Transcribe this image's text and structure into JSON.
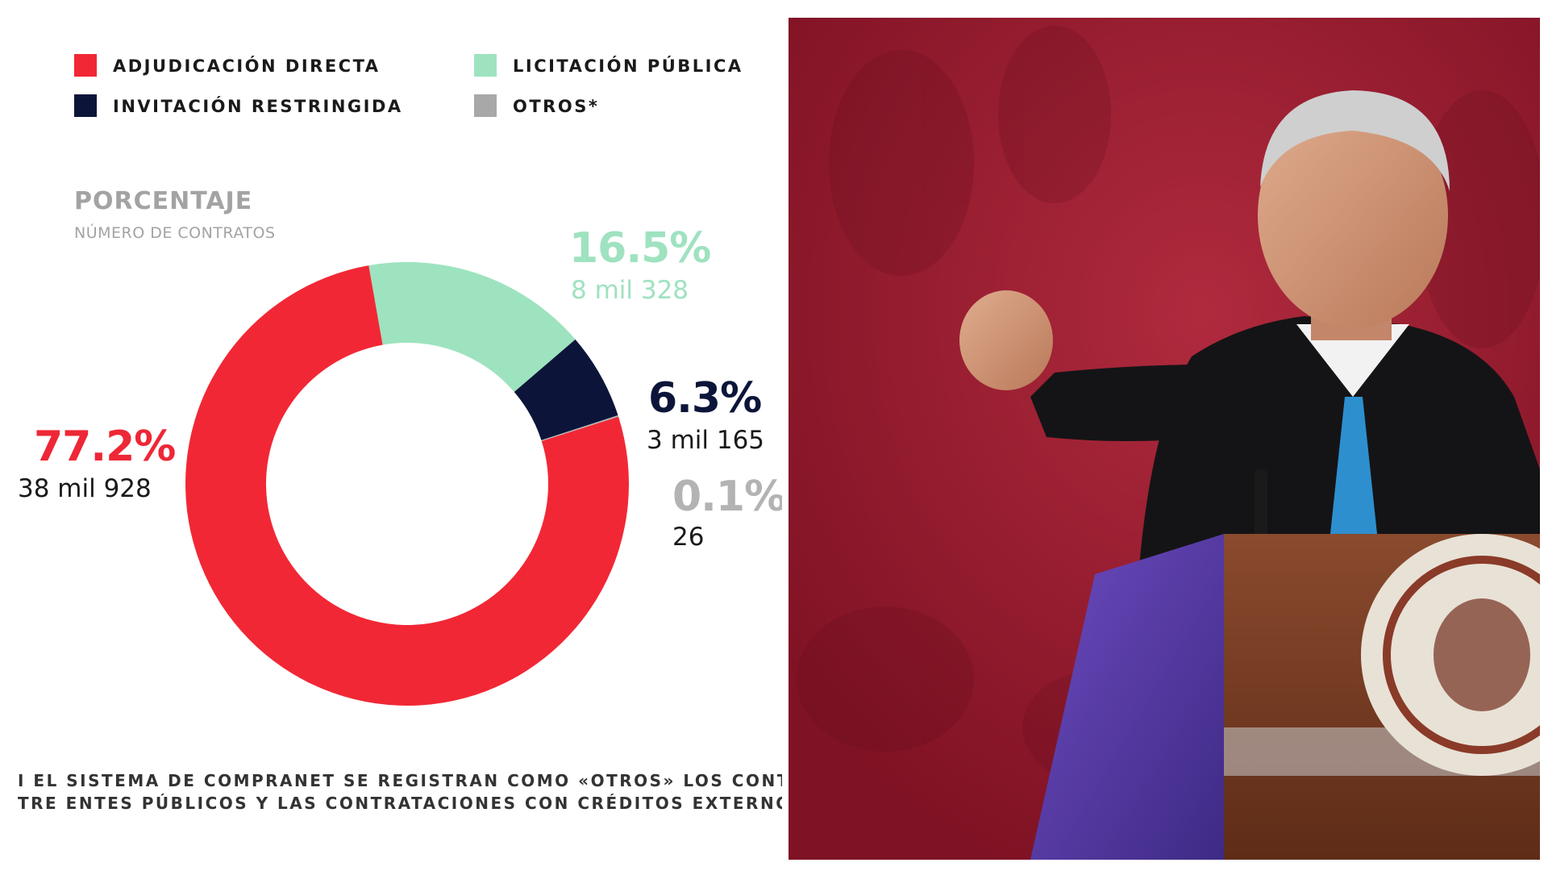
{
  "chart_data": {
    "type": "pie",
    "title": "PORCENTAJE",
    "subtitle": "NÚMERO DE CONTRATOS",
    "legend": [
      "ADJUDICACIÓN DIRECTA",
      "LICITACIÓN PÚBLICA",
      "INVITACIÓN RESTRINGIDA",
      "OTROS*"
    ],
    "legend_position": "top",
    "categories": [
      "ADJUDICACIÓN DIRECTA",
      "LICITACIÓN PÚBLICA",
      "INVITACIÓN RESTRINGIDA",
      "OTROS*"
    ],
    "values": [
      77.2,
      16.5,
      6.3,
      0.1
    ],
    "value_labels": [
      "77.2%",
      "16.5%",
      "6.3%",
      "0.1%"
    ],
    "counts": [
      "38 mil 928",
      "8 mil 328",
      "3 mil 165",
      "26"
    ],
    "colors": [
      "#f22735",
      "#9de3bf",
      "#0c1539",
      "#b3b3b3"
    ],
    "label_colors": [
      "#ee2736",
      "#9fe2c0",
      "#0c1539",
      "#b3b3b3"
    ],
    "count_colors": [
      "#1a1a1a",
      "#9fe2c0",
      "#1a1a1a",
      "#1a1a1a"
    ]
  },
  "footnote": [
    "I EL SISTEMA DE COMPRANET SE REGISTRAN COMO «OTROS» LOS CONTRA",
    "TRE ENTES PÚBLICOS Y LAS CONTRATACIONES CON CRÉDITOS EXTERNOS"
  ],
  "photo": {
    "background_color": "#9b1b30",
    "suit_color": "#141416",
    "tie_color": "#2e8fcf",
    "podium_color": "#7a3a25",
    "podium_side_color": "#5b3fa8"
  }
}
